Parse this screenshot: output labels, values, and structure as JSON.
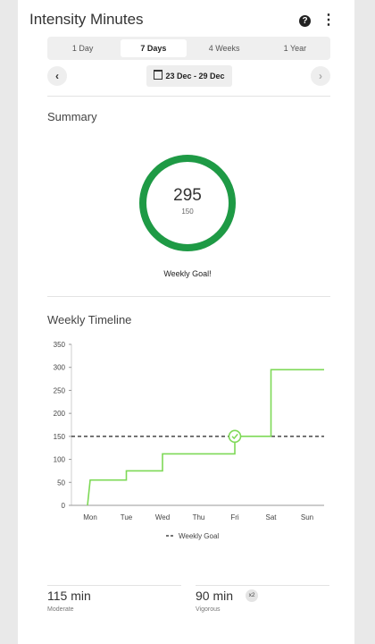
{
  "header": {
    "title": "Intensity Minutes"
  },
  "tabs": [
    {
      "label": "1 Day",
      "active": false
    },
    {
      "label": "7 Days",
      "active": true
    },
    {
      "label": "4 Weeks",
      "active": false
    },
    {
      "label": "1 Year",
      "active": false
    }
  ],
  "date_range": "23 Dec - 29 Dec",
  "summary": {
    "title": "Summary",
    "total": "295",
    "goal": "150",
    "status": "Weekly Goal!",
    "ring_color": "#1e9a45",
    "progress_fraction": 1.0
  },
  "timeline": {
    "title": "Weekly Timeline"
  },
  "chart_data": {
    "type": "line",
    "categories": [
      "Mon",
      "Tue",
      "Wed",
      "Thu",
      "Fri",
      "Sat",
      "Sun"
    ],
    "yticks": [
      0,
      50,
      100,
      150,
      200,
      250,
      300,
      350
    ],
    "ylim": [
      0,
      350
    ],
    "goal_value": 150,
    "goal_label": "Weekly Goal",
    "line_color": "#7ed957",
    "cumulative_points": [
      {
        "x": "Mon",
        "y": 0
      },
      {
        "x": "Mon",
        "y": 55
      },
      {
        "x": "Tue",
        "y": 55
      },
      {
        "x": "Tue",
        "y": 75
      },
      {
        "x": "Wed",
        "y": 75
      },
      {
        "x": "Wed",
        "y": 112
      },
      {
        "x": "Fri",
        "y": 112
      },
      {
        "x": "Fri",
        "y": 150
      },
      {
        "x": "Sat",
        "y": 150
      },
      {
        "x": "Sat",
        "y": 295
      },
      {
        "x": "Sun",
        "y": 295
      }
    ],
    "goal_reached_at": "Fri"
  },
  "stats": {
    "moderate": {
      "value": "115 min",
      "label": "Moderate"
    },
    "vigorous": {
      "value": "90 min",
      "label": "Vigorous",
      "multiplier": "x2"
    }
  }
}
